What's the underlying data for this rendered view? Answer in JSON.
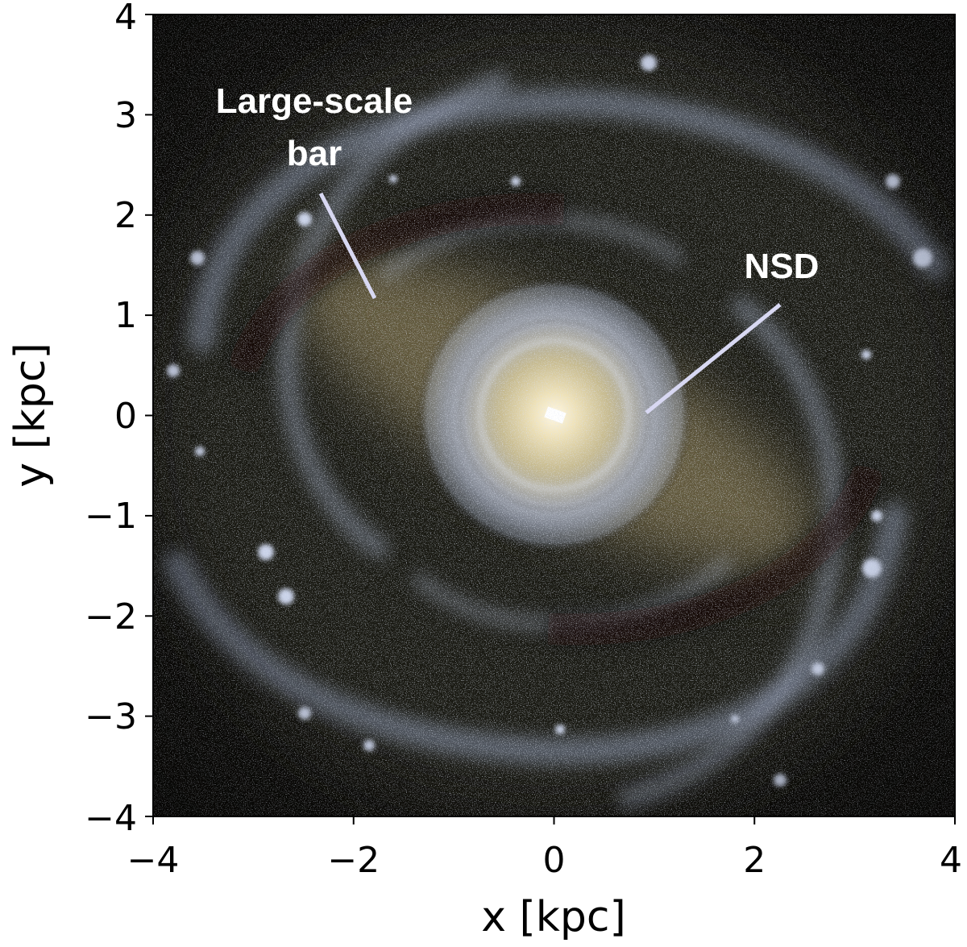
{
  "axes": {
    "xlabel": "x [kpc]",
    "ylabel": "y [kpc]",
    "xlim": [
      -4,
      4
    ],
    "ylim": [
      -4,
      4
    ],
    "xticks": [
      "−4",
      "−2",
      "0",
      "2",
      "4"
    ],
    "yticks": [
      "4",
      "3",
      "2",
      "1",
      "0",
      "−1",
      "−2",
      "−3",
      "−4"
    ]
  },
  "annotations": {
    "bar_line1": "Large-scale",
    "bar_line2": "bar",
    "nsd": "NSD"
  },
  "colors": {
    "background": "#0d0c09",
    "dust": "#16140f",
    "arm": "#b9c4de",
    "bar_glow": "#8a7d55",
    "core": "#fff4d6",
    "annotation_line": "#d8d8f2"
  }
}
